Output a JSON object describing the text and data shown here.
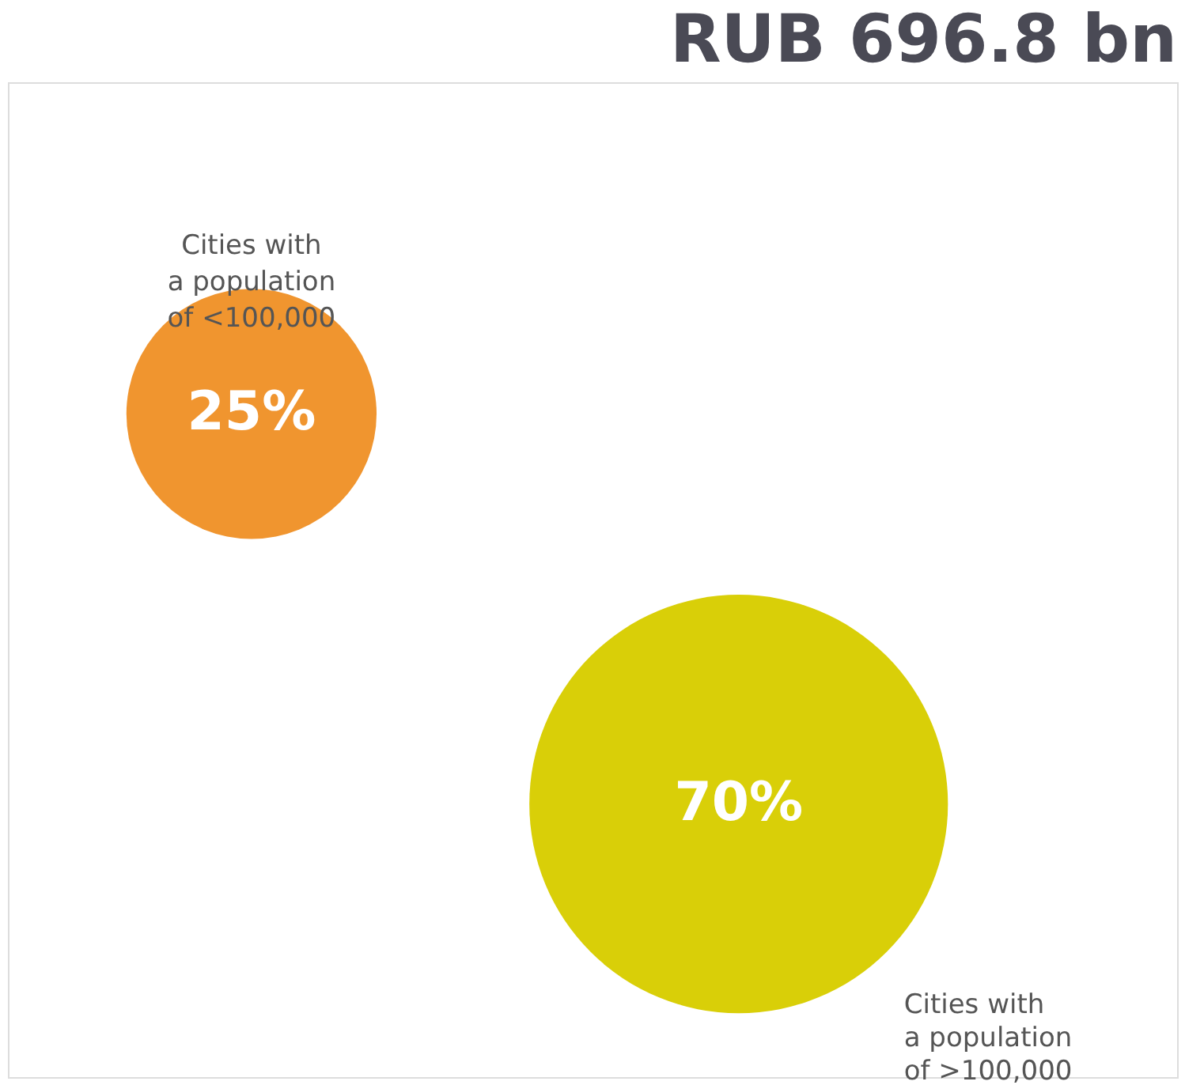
{
  "chart_data": {
    "type": "other",
    "title": "RUB 696.8 bn",
    "categories": [
      "Cities with a population of <100,000",
      "Cities with a population of >100,000"
    ],
    "values": [
      25,
      70
    ],
    "value_labels": [
      "25%",
      "70%"
    ],
    "colors": [
      "#f0952f",
      "#d9cf08"
    ]
  }
}
